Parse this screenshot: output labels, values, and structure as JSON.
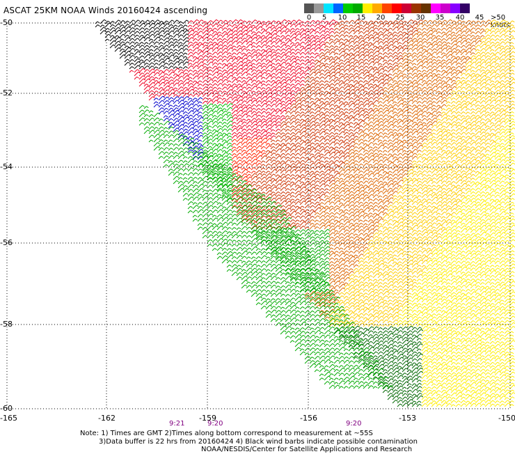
{
  "title": "ASCAT 25KM NOAA Winds 20160424 ascending",
  "scale": {
    "colors": [
      "#555555",
      "#999999",
      "#00e5ff",
      "#0066ff",
      "#00cc00",
      "#00aa00",
      "#ffee00",
      "#ffaa00",
      "#ff4400",
      "#ff0000",
      "#cc0033",
      "#993300",
      "#663300",
      "#ff00ff",
      "#cc00cc",
      "#8800ff",
      "#330066"
    ],
    "labels": [
      "0",
      "5",
      "10",
      "15",
      "20",
      "25",
      "30",
      "35",
      "40",
      "45",
      ">50 knots"
    ]
  },
  "axes": {
    "lat_labels": [
      "-50",
      "-52",
      "-54",
      "-56",
      "-58",
      "-60"
    ],
    "lon_labels": [
      "-165",
      "-162",
      "-159",
      "-156",
      "-153",
      "-150"
    ]
  },
  "times": [
    "9:21",
    "9:20",
    "9:20"
  ],
  "notes": [
    "Note: 1) Times are GMT 2)Times along bottom correspond to measurement at ~55S",
    "3)Data buffer is 22 hrs from 20160424 4) Black wind barbs indicate possible contamination",
    "NOAA/NESDIS/Center for Satellite Applications and Research"
  ]
}
